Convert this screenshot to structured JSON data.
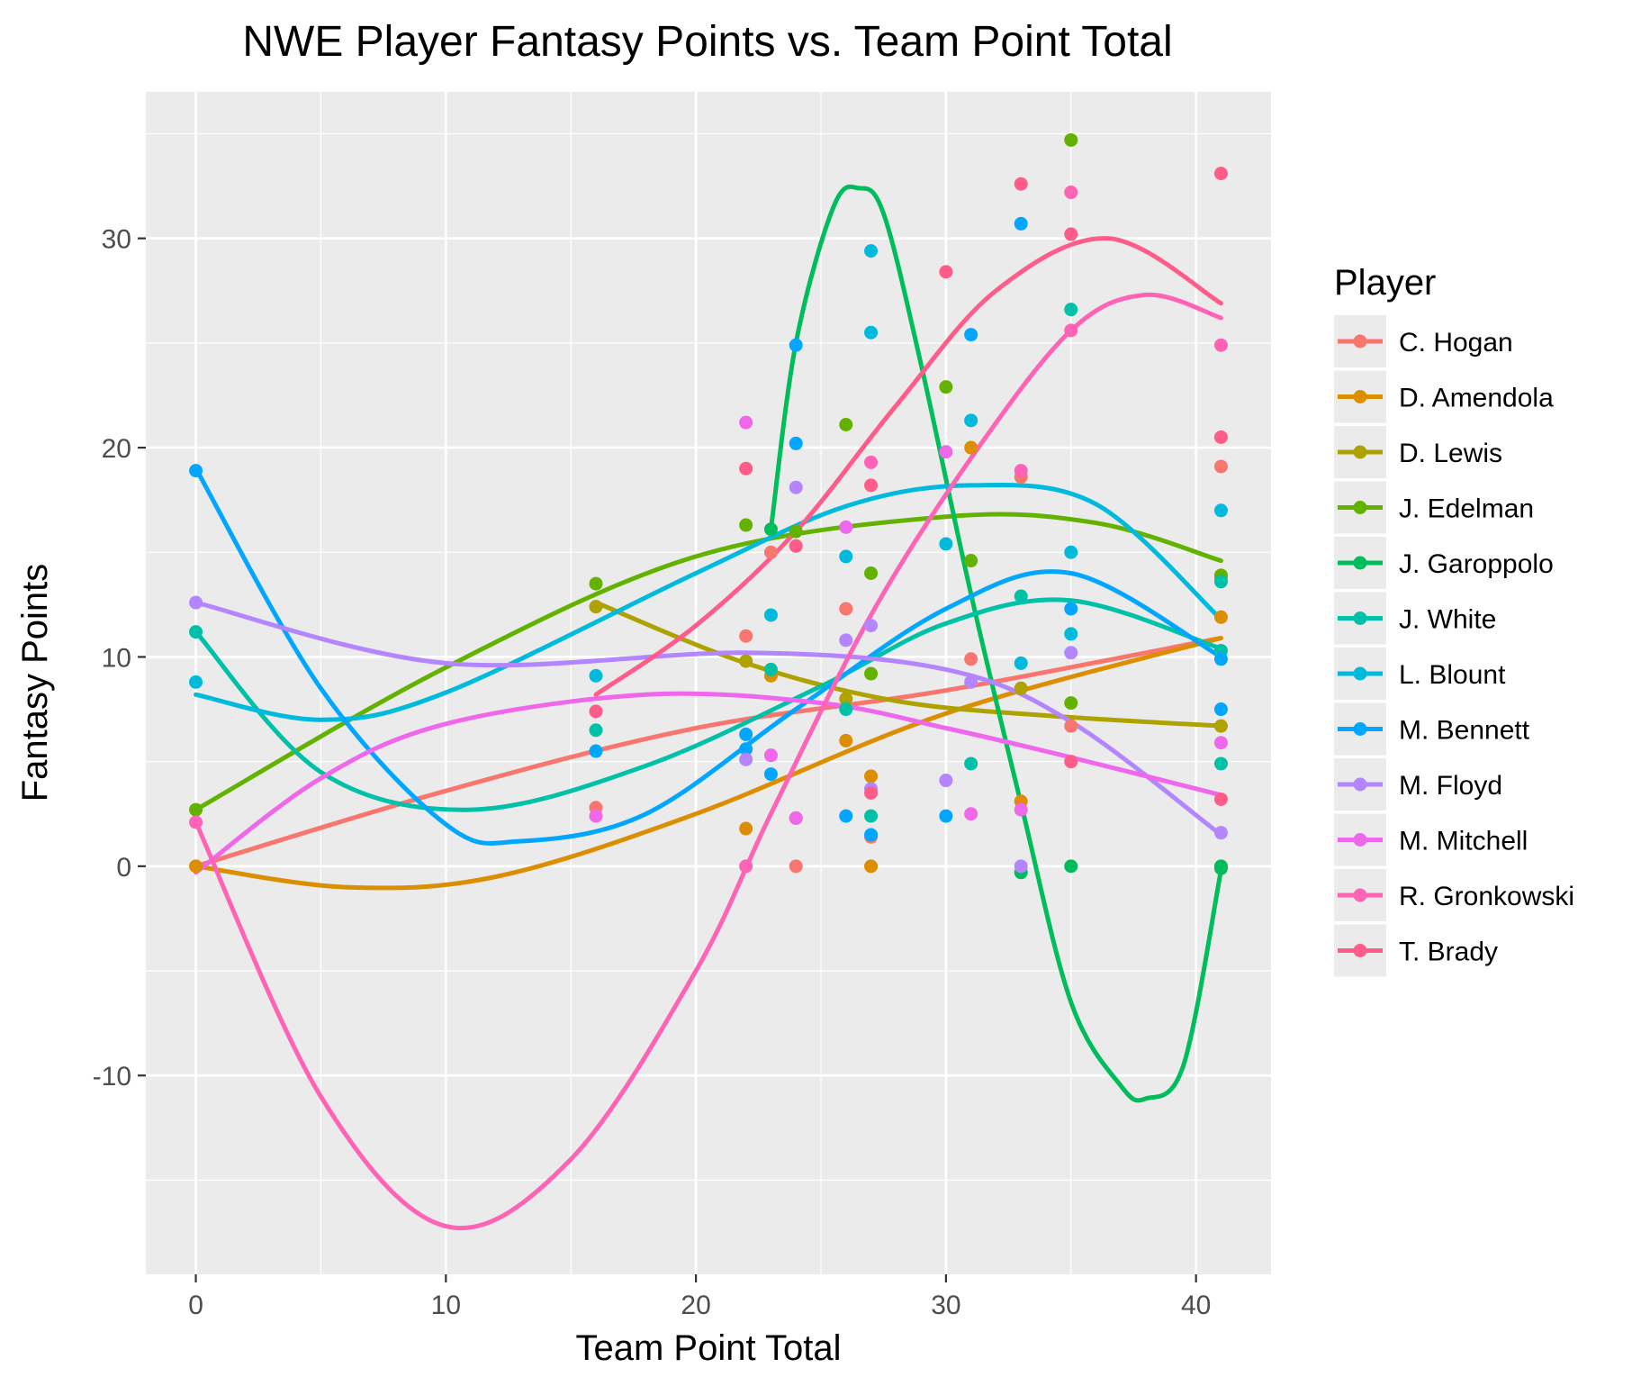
{
  "chart_data": {
    "type": "scatter",
    "title": "NWE Player Fantasy Points vs. Team Point Total",
    "xlabel": "Team Point Total",
    "ylabel": "Fantasy Points",
    "xlim": [
      -2,
      43
    ],
    "ylim": [
      -19.5,
      37
    ],
    "x_ticks": [
      0,
      10,
      20,
      30,
      40
    ],
    "y_ticks": [
      -10,
      0,
      10,
      20,
      30
    ],
    "grid": true,
    "legend": {
      "title": "Player",
      "position": "right"
    },
    "trend_lines": "smoothed curve per player",
    "series": [
      {
        "name": "C. Hogan",
        "color": "#F8766D",
        "points": [
          [
            16,
            2.8
          ],
          [
            22,
            11
          ],
          [
            23,
            15
          ],
          [
            24,
            0
          ],
          [
            26,
            12.3
          ],
          [
            27,
            1.4
          ],
          [
            31,
            9.9
          ],
          [
            33,
            18.6
          ],
          [
            35,
            6.7
          ],
          [
            41,
            19.1
          ]
        ],
        "curve": [
          [
            0,
            0
          ],
          [
            10,
            3.6
          ],
          [
            20,
            6.6
          ],
          [
            30,
            8.4
          ],
          [
            41,
            10.9
          ]
        ]
      },
      {
        "name": "D. Amendola",
        "color": "#DB8E00",
        "points": [
          [
            0,
            0
          ],
          [
            22,
            1.8
          ],
          [
            23,
            9.1
          ],
          [
            24,
            2.3
          ],
          [
            26,
            6
          ],
          [
            27,
            0
          ],
          [
            27,
            4.3
          ],
          [
            31,
            20
          ],
          [
            33,
            3.1
          ],
          [
            41,
            11.9
          ]
        ],
        "curve": [
          [
            0,
            0
          ],
          [
            6,
            -1
          ],
          [
            12,
            -0.5
          ],
          [
            20,
            2.5
          ],
          [
            30,
            7.3
          ],
          [
            41,
            10.9
          ]
        ]
      },
      {
        "name": "D. Lewis",
        "color": "#AEA200",
        "points": [
          [
            16,
            12.4
          ],
          [
            22,
            9.8
          ],
          [
            26,
            8
          ],
          [
            33,
            8.5
          ],
          [
            41,
            6.7
          ]
        ],
        "curve": [
          [
            16,
            12.6
          ],
          [
            22,
            9.7
          ],
          [
            28,
            7.9
          ],
          [
            34,
            7.2
          ],
          [
            41,
            6.7
          ]
        ]
      },
      {
        "name": "J. Edelman",
        "color": "#64B200",
        "points": [
          [
            0,
            2.7
          ],
          [
            16,
            13.5
          ],
          [
            22,
            16.3
          ],
          [
            24,
            16
          ],
          [
            26,
            21.1
          ],
          [
            27,
            14
          ],
          [
            27,
            9.2
          ],
          [
            30,
            22.9
          ],
          [
            31,
            14.6
          ],
          [
            35,
            34.7
          ],
          [
            35,
            7.8
          ],
          [
            41,
            13.8
          ],
          [
            41,
            13.9
          ]
        ],
        "curve": [
          [
            0,
            2.7
          ],
          [
            10,
            9.5
          ],
          [
            20,
            14.8
          ],
          [
            30,
            16.7
          ],
          [
            36,
            16.4
          ],
          [
            41,
            14.6
          ]
        ]
      },
      {
        "name": "J. Garoppolo",
        "color": "#00BD5C",
        "points": [
          [
            23,
            16.1
          ],
          [
            33,
            -0.3
          ],
          [
            35,
            0
          ],
          [
            41,
            0
          ],
          [
            41,
            -0.1
          ]
        ],
        "curve": [
          [
            23,
            16.1
          ],
          [
            24,
            25
          ],
          [
            25.5,
            31.5
          ],
          [
            26.5,
            32.4
          ],
          [
            27.5,
            31.2
          ],
          [
            29,
            24
          ],
          [
            31,
            13
          ],
          [
            33,
            3
          ],
          [
            35,
            -6.5
          ],
          [
            37,
            -10.5
          ],
          [
            38,
            -11.1
          ],
          [
            39.5,
            -9.5
          ],
          [
            41,
            -0.2
          ]
        ]
      },
      {
        "name": "J. White",
        "color": "#00C1A7",
        "points": [
          [
            0,
            11.2
          ],
          [
            16,
            6.5
          ],
          [
            23,
            9.4
          ],
          [
            26,
            7.5
          ],
          [
            27,
            2.4
          ],
          [
            31,
            4.9
          ],
          [
            33,
            12.9
          ],
          [
            35,
            26.6
          ],
          [
            41,
            4.9
          ],
          [
            41,
            10.3
          ],
          [
            41,
            13.6
          ]
        ],
        "curve": [
          [
            0,
            11.2
          ],
          [
            5,
            4.5
          ],
          [
            11,
            2.7
          ],
          [
            18,
            4.8
          ],
          [
            25,
            8.6
          ],
          [
            30,
            11.6
          ],
          [
            35,
            12.7
          ],
          [
            41,
            10.4
          ]
        ]
      },
      {
        "name": "L. Blount",
        "color": "#00BADE",
        "points": [
          [
            0,
            8.8
          ],
          [
            16,
            9.1
          ],
          [
            23,
            12
          ],
          [
            26,
            14.8
          ],
          [
            27,
            29.4
          ],
          [
            27,
            25.5
          ],
          [
            30,
            15.4
          ],
          [
            31,
            21.3
          ],
          [
            33,
            9.7
          ],
          [
            35,
            15
          ],
          [
            35,
            11.1
          ],
          [
            41,
            17
          ]
        ],
        "curve": [
          [
            0,
            8.2
          ],
          [
            5,
            7
          ],
          [
            10,
            8.3
          ],
          [
            20,
            14
          ],
          [
            26,
            17.2
          ],
          [
            31,
            18.2
          ],
          [
            36,
            17.3
          ],
          [
            41,
            11.8
          ]
        ]
      },
      {
        "name": "M. Bennett",
        "color": "#00A6FF",
        "points": [
          [
            0,
            18.9
          ],
          [
            16,
            5.5
          ],
          [
            22,
            6.3
          ],
          [
            22,
            5.6
          ],
          [
            23,
            4.4
          ],
          [
            24,
            24.9
          ],
          [
            24,
            20.2
          ],
          [
            26,
            2.4
          ],
          [
            27,
            1.5
          ],
          [
            30,
            2.4
          ],
          [
            31,
            25.4
          ],
          [
            33,
            30.7
          ],
          [
            35,
            12.3
          ],
          [
            41,
            9.9
          ],
          [
            41,
            7.5
          ]
        ],
        "curve": [
          [
            0,
            19
          ],
          [
            5,
            8.5
          ],
          [
            10,
            2
          ],
          [
            13,
            1.2
          ],
          [
            18,
            2.5
          ],
          [
            24,
            7.5
          ],
          [
            30,
            12.3
          ],
          [
            35,
            14
          ],
          [
            41,
            10
          ]
        ]
      },
      {
        "name": "M. Floyd",
        "color": "#B385FF",
        "points": [
          [
            0,
            12.6
          ],
          [
            22,
            5.1
          ],
          [
            24,
            18.1
          ],
          [
            26,
            10.8
          ],
          [
            27,
            11.5
          ],
          [
            27,
            3.7
          ],
          [
            30,
            4.1
          ],
          [
            31,
            8.8
          ],
          [
            33,
            0
          ],
          [
            35,
            10.2
          ],
          [
            41,
            1.6
          ]
        ],
        "curve": [
          [
            0,
            12.6
          ],
          [
            10,
            9.7
          ],
          [
            22,
            10.2
          ],
          [
            30,
            9.4
          ],
          [
            35,
            6.9
          ],
          [
            41,
            1.5
          ]
        ]
      },
      {
        "name": "M. Mitchell",
        "color": "#EF67EB",
        "points": [
          [
            16,
            2.4
          ],
          [
            22,
            21.2
          ],
          [
            23,
            5.3
          ],
          [
            24,
            2.3
          ],
          [
            26,
            16.2
          ],
          [
            30,
            19.8
          ],
          [
            31,
            2.5
          ],
          [
            33,
            2.7
          ],
          [
            41,
            5.9
          ]
        ],
        "curve": [
          [
            0,
            -0.3
          ],
          [
            5,
            4.2
          ],
          [
            10,
            6.8
          ],
          [
            18,
            8.2
          ],
          [
            25,
            7.8
          ],
          [
            30,
            6.6
          ],
          [
            35,
            5.2
          ],
          [
            41,
            3.4
          ]
        ]
      },
      {
        "name": "R. Gronkowski",
        "color": "#FF63B6",
        "points": [
          [
            0,
            2.1
          ],
          [
            22,
            0
          ],
          [
            27,
            19.3
          ],
          [
            33,
            18.9
          ],
          [
            35,
            32.2
          ],
          [
            35,
            25.6
          ],
          [
            41,
            24.9
          ]
        ],
        "curve": [
          [
            0,
            2.1
          ],
          [
            5,
            -11
          ],
          [
            10,
            -17.2
          ],
          [
            15,
            -14
          ],
          [
            20,
            -5
          ],
          [
            23,
            2.5
          ],
          [
            27,
            12
          ],
          [
            31,
            19.5
          ],
          [
            35,
            25.6
          ],
          [
            38,
            27.3
          ],
          [
            41,
            26.2
          ]
        ]
      },
      {
        "name": "T. Brady",
        "color": "#FF5C8A",
        "points": [
          [
            16,
            7.4
          ],
          [
            22,
            19
          ],
          [
            24,
            15.3
          ],
          [
            27,
            18.2
          ],
          [
            27,
            3.5
          ],
          [
            30,
            28.4
          ],
          [
            33,
            32.6
          ],
          [
            35,
            30.2
          ],
          [
            35,
            5
          ],
          [
            41,
            33.1
          ],
          [
            41,
            20.5
          ],
          [
            41,
            3.2
          ]
        ],
        "curve": [
          [
            16,
            8.2
          ],
          [
            20,
            11.5
          ],
          [
            24,
            16
          ],
          [
            28,
            22
          ],
          [
            32,
            27.5
          ],
          [
            36.5,
            30
          ],
          [
            41,
            26.9
          ]
        ]
      }
    ]
  }
}
